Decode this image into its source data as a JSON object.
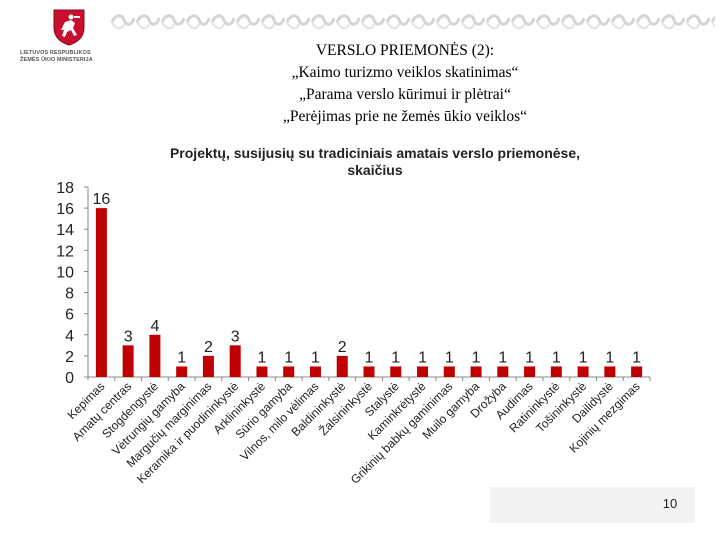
{
  "logo": {
    "org_line1": "LIETUVOS RESPUBLIKOS",
    "org_line2": "ŽEMĖS ŪKIO MINISTERIJA"
  },
  "slide": {
    "title_lines": [
      "VERSLO PRIEMONĖS (2):",
      "„Kaimo turizmo veiklos skatinimas“",
      "„Parama verslo kūrimui ir plėtrai“",
      "„Perėjimas prie ne žemės ūkio veiklos“"
    ],
    "page_number": "10"
  },
  "colors": {
    "bar": "#c00000",
    "axis": "#888888",
    "text": "#222222"
  },
  "chart_data": {
    "type": "bar",
    "title": "Projektų, susijusių su tradiciniais amatais verslo priemonėse, skaičius",
    "title_lines": [
      "Projektų, susijusių su tradiciniais amatais verslo priemonėse,",
      "skaičius"
    ],
    "categories": [
      "Kepimas",
      "Amatų centras",
      "Stogdengystė",
      "Vėtrungių gamyba",
      "Margučių marginimas",
      "Keramika ir puodininkystė",
      "Arklininkystė",
      "Sūrio gamyba",
      "Vilnos, milo vėlimas",
      "Baldininkystė",
      "Žalsininkystė",
      "Stalystė",
      "Kaminkrėtystė",
      "Grikinių babkų gaminimas",
      "Muilo gamyba",
      "Drožyba",
      "Audimas",
      "Ratininkystė",
      "Tošininkystė",
      "Dailidystė",
      "Kojinių mezgimas"
    ],
    "values": [
      16,
      3,
      4,
      1,
      2,
      3,
      1,
      1,
      1,
      2,
      1,
      1,
      1,
      1,
      1,
      1,
      1,
      1,
      1,
      1,
      1
    ],
    "ylim": [
      0,
      18
    ],
    "yticks": [
      0,
      2,
      4,
      6,
      8,
      10,
      12,
      14,
      16,
      18
    ],
    "xlabel": "",
    "ylabel": "",
    "grid": false,
    "legend": "none"
  }
}
